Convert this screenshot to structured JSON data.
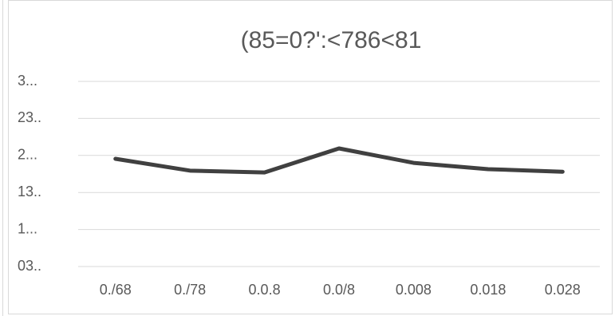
{
  "chart_data": {
    "type": "line",
    "title": "(85=0?':<786<81",
    "categories": [
      "0./68",
      "0./78",
      "0.0.8",
      "0.0/8",
      "0.008",
      "0.018",
      "0.028"
    ],
    "series": [
      {
        "name": null,
        "color": "#404040",
        "values": [
          2.91,
          2.59,
          2.54,
          3.19,
          2.8,
          2.63,
          2.56
        ]
      }
    ],
    "ylim": [
      0,
      5
    ],
    "yticks": [
      {
        "value": 0,
        "label": "03.."
      },
      {
        "value": 1,
        "label": "1..."
      },
      {
        "value": 2,
        "label": "13.."
      },
      {
        "value": 3,
        "label": "2..."
      },
      {
        "value": 4,
        "label": "23.."
      },
      {
        "value": 5,
        "label": "3..."
      }
    ],
    "grid": true
  }
}
